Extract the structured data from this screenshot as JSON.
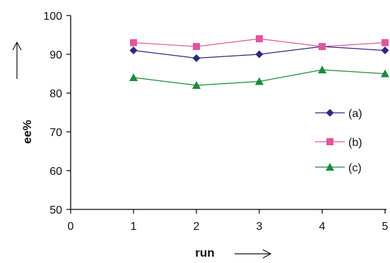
{
  "chart_data": {
    "type": "line",
    "title": "",
    "xlabel": "run",
    "ylabel": "ee%",
    "x_ticks": [
      "0",
      "1",
      "2",
      "3",
      "4",
      "5"
    ],
    "y_ticks": [
      "50",
      "60",
      "70",
      "80",
      "90",
      "100"
    ],
    "xlim": [
      0,
      5
    ],
    "ylim": [
      50,
      100
    ],
    "grid": false,
    "legend_position": "right",
    "categories": [
      1,
      2,
      3,
      4,
      5
    ],
    "series": [
      {
        "name": "(a)",
        "values": [
          91,
          89,
          90,
          92,
          91
        ],
        "color": "#2b2a80",
        "marker": "diamond"
      },
      {
        "name": "(b)",
        "values": [
          93,
          92,
          94,
          92,
          93
        ],
        "color": "#e0559e",
        "marker": "square"
      },
      {
        "name": "(c)",
        "values": [
          84,
          82,
          83,
          86,
          85
        ],
        "color": "#1a8a3a",
        "marker": "triangle"
      }
    ]
  }
}
